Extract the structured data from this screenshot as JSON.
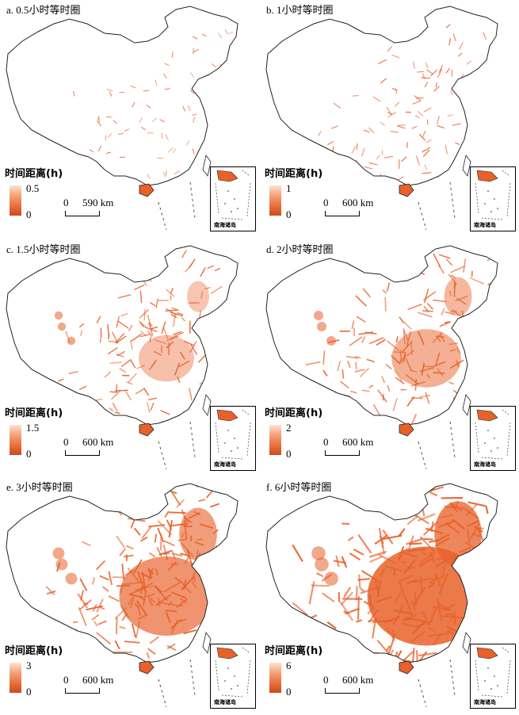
{
  "legend_title": "时间距离(h)",
  "inset_label": "南海诸岛",
  "colors": {
    "low": "#fde3d2",
    "high": "#c94a1c",
    "border": "#222222",
    "fill": "#e8612a"
  },
  "panels": [
    {
      "title": "a. 0.5小时等时圈",
      "legend_max": "0.5",
      "legend_min": "0",
      "scale_zero": "0",
      "scale_label": "590 km",
      "coverage": 0.08
    },
    {
      "title": "b. 1小时等时圈",
      "legend_max": "1",
      "legend_min": "0",
      "scale_zero": "0",
      "scale_label": "600 km",
      "coverage": 0.22
    },
    {
      "title": "c. 1.5小时等时圈",
      "legend_max": "1.5",
      "legend_min": "0",
      "scale_zero": "0",
      "scale_label": "600 km",
      "coverage": 0.4
    },
    {
      "title": "d. 2小时等时圈",
      "legend_max": "2",
      "legend_min": "0",
      "scale_zero": "0",
      "scale_label": "600 km",
      "coverage": 0.5
    },
    {
      "title": "e. 3小时等时圈",
      "legend_max": "3",
      "legend_min": "0",
      "scale_zero": "0",
      "scale_label": "600 km",
      "coverage": 0.68
    },
    {
      "title": "f. 6小时等时圈",
      "legend_max": "6",
      "legend_min": "0",
      "scale_zero": "0",
      "scale_label": "600 km",
      "coverage": 0.85
    }
  ]
}
